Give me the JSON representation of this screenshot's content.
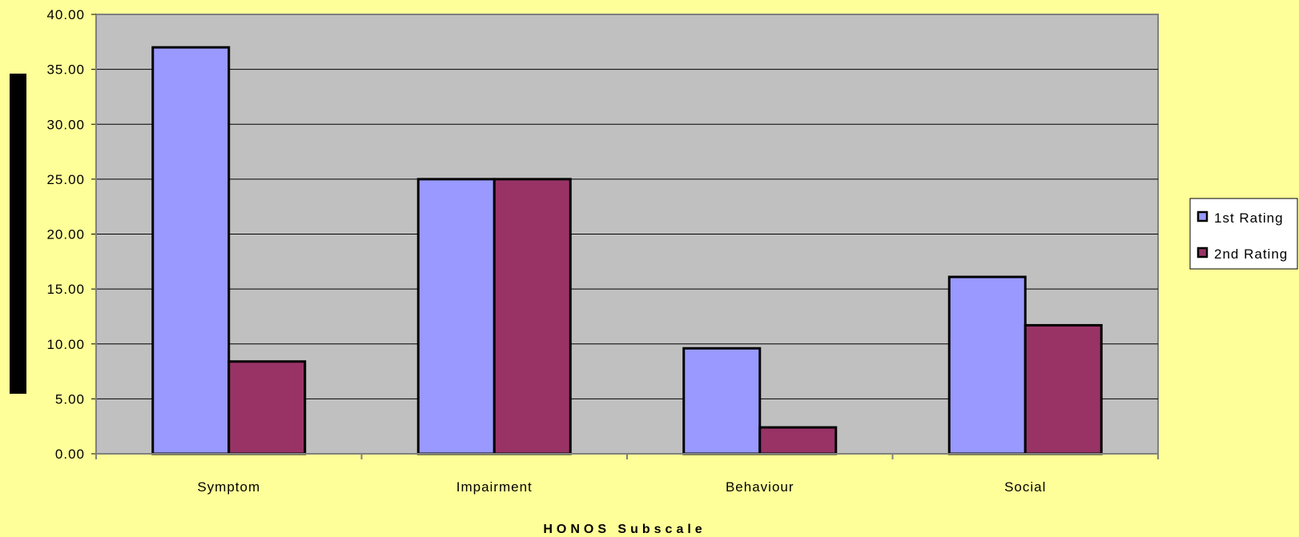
{
  "chart_data": {
    "type": "bar",
    "categories": [
      "Symptom",
      "Impairment",
      "Behaviour",
      "Social"
    ],
    "series": [
      {
        "name": "1st Rating",
        "values": [
          37.0,
          25.0,
          9.6,
          16.1
        ],
        "color": "#9999FF"
      },
      {
        "name": "2nd Rating",
        "values": [
          8.4,
          25.0,
          2.4,
          11.7
        ],
        "color": "#993366"
      }
    ],
    "title": "",
    "xlabel": "HONOS Subscale",
    "ylabel": "",
    "ylim": [
      0,
      40
    ],
    "yticks": [
      "0.00",
      "5.00",
      "10.00",
      "15.00",
      "20.00",
      "25.00",
      "30.00",
      "35.00",
      "40.00"
    ],
    "grid": true,
    "legend": "right",
    "colors": {
      "page_background": "#FFFF99",
      "plot_background": "#C0C0C0",
      "gridline": "#000000"
    }
  }
}
